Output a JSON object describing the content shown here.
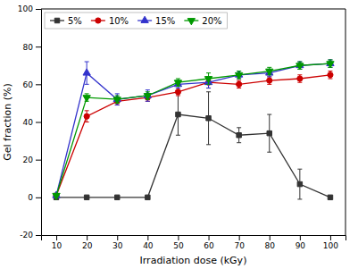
{
  "chart_data": {
    "type": "line",
    "xlabel": "Irradiation dose (kGy)",
    "ylabel": "Gel fraction (%)",
    "x": [
      10,
      20,
      30,
      40,
      50,
      60,
      70,
      80,
      90,
      100
    ],
    "series": [
      {
        "name": "5%",
        "color": "#333333",
        "marker": "square",
        "line_style": "solid",
        "values": [
          0,
          0,
          0,
          0,
          44,
          42,
          33,
          34,
          7,
          0
        ],
        "errors": [
          0.5,
          0.5,
          0.5,
          0.5,
          11,
          14,
          4,
          10,
          8,
          0.5
        ]
      },
      {
        "name": "10%",
        "color": "#cc0000",
        "marker": "circle",
        "line_style": "solid",
        "values": [
          1,
          43,
          51,
          53,
          56,
          61,
          60,
          62,
          63,
          65
        ],
        "errors": [
          0.5,
          3,
          2,
          2,
          2,
          3,
          2,
          2,
          2,
          2
        ]
      },
      {
        "name": "15%",
        "color": "#3333cc",
        "marker": "triangle-up",
        "line_style": "solid",
        "values": [
          1,
          66,
          52,
          54,
          60,
          61,
          65,
          66,
          70,
          71
        ],
        "errors": [
          0.5,
          6,
          3,
          3,
          2,
          3,
          2,
          2,
          2,
          2
        ]
      },
      {
        "name": "20%",
        "color": "#009900",
        "marker": "triangle-down",
        "line_style": "solid",
        "values": [
          1,
          53,
          52,
          54,
          61,
          63,
          65,
          67,
          70,
          71
        ],
        "errors": [
          0.5,
          2,
          2,
          2,
          2,
          3,
          2,
          2,
          2,
          2
        ]
      }
    ],
    "xlim": [
      5,
      105
    ],
    "ylim": [
      -20,
      100
    ],
    "xticks": [
      10,
      20,
      30,
      40,
      50,
      60,
      70,
      80,
      90,
      100
    ],
    "yticks": [
      -20,
      0,
      20,
      40,
      60,
      80,
      100
    ],
    "grid": false,
    "legend": "upper left"
  }
}
